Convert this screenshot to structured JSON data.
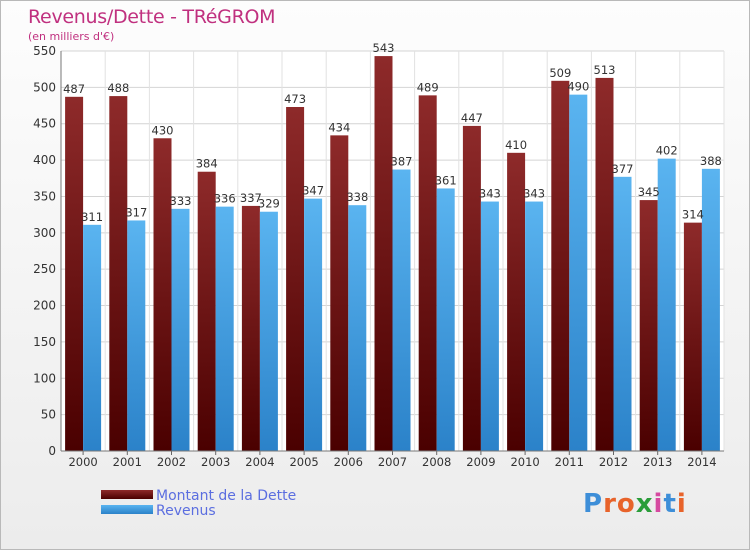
{
  "chart_data": {
    "type": "bar",
    "title": "Revenus/Dette - TRéGROM",
    "subtitle": "(en milliers d'€)",
    "categories": [
      "2000",
      "2001",
      "2002",
      "2003",
      "2004",
      "2005",
      "2006",
      "2007",
      "2008",
      "2009",
      "2010",
      "2011",
      "2012",
      "2013",
      "2014"
    ],
    "series": [
      {
        "name": "Montant de la Dette",
        "color": "#7a1a1a",
        "values": [
          487,
          488,
          430,
          384,
          337,
          473,
          434,
          543,
          489,
          447,
          410,
          509,
          513,
          345,
          314
        ]
      },
      {
        "name": "Revenus",
        "color": "#45a3e6",
        "values": [
          311,
          317,
          333,
          336,
          329,
          347,
          338,
          387,
          361,
          343,
          343,
          490,
          377,
          402,
          388
        ]
      }
    ],
    "ylim": [
      0,
      550
    ],
    "yticks": [
      0,
      50,
      100,
      150,
      200,
      250,
      300,
      350,
      400,
      450,
      500,
      550
    ],
    "grid": true,
    "legend_position": "bottom-left"
  },
  "branding": {
    "logo_text": "Proxiti",
    "logo_colors": [
      "#3d8ed8",
      "#e8632a",
      "#e8632a",
      "#2a9d3a",
      "#d64aa0",
      "#3d8ed8",
      "#e8632a"
    ]
  }
}
